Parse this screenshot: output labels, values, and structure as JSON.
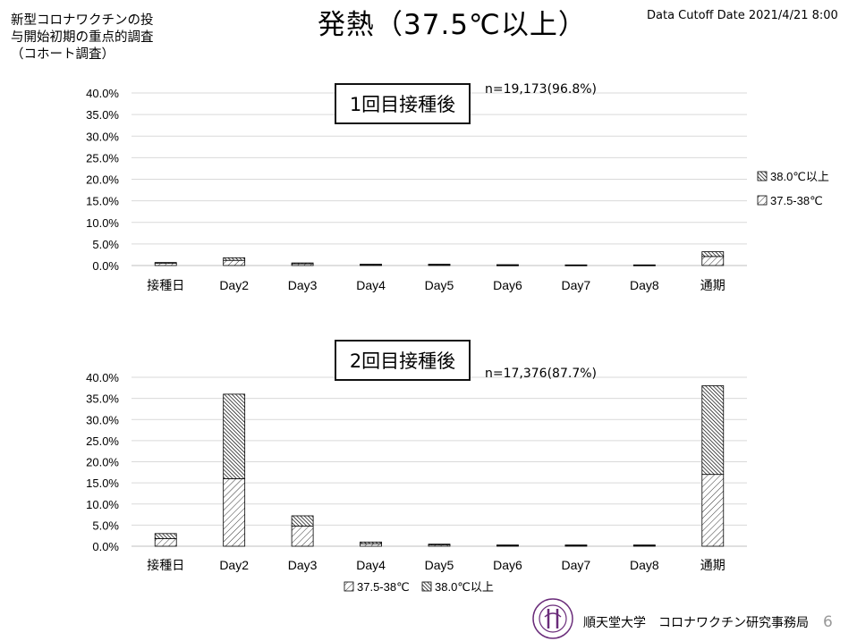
{
  "header": {
    "subtitle": "新型コロナワクチンの投\n与開始初期の重点的調査\n（コホート調査）",
    "title": "発熱（37.5℃以上）",
    "cutoff": "Data Cutoff Date 2021/4/21 8:00"
  },
  "footer": {
    "org": "順天堂大学　コロナワクチン研究事務局",
    "page": "6",
    "seal_text": "JUNTENDO UNIVERSITY"
  },
  "colors": {
    "bar_stroke": "#000000",
    "gridline": "#d9d9d9",
    "hatch": "#000000"
  },
  "chart_data": [
    {
      "type": "bar",
      "stacked": true,
      "title": "1回目接種後",
      "annotation": "n=19,173(96.8%)",
      "categories": [
        "接種日",
        "Day2",
        "Day3",
        "Day4",
        "Day5",
        "Day6",
        "Day7",
        "Day8",
        "通期"
      ],
      "ylim": [
        0,
        40
      ],
      "yticks": [
        "0.0%",
        "5.0%",
        "10.0%",
        "15.0%",
        "20.0%",
        "25.0%",
        "30.0%",
        "35.0%",
        "40.0%"
      ],
      "grid": true,
      "legend_position": "right",
      "series": [
        {
          "name": "37.5-38℃",
          "pattern": "thin-hatch",
          "values": [
            0.5,
            1.2,
            0.4,
            0.2,
            0.2,
            0.1,
            0.1,
            0.1,
            2.1
          ]
        },
        {
          "name": "38.0℃以上",
          "pattern": "dense-hatch",
          "values": [
            0.2,
            0.6,
            0.2,
            0.1,
            0.1,
            0.1,
            0.05,
            0.05,
            1.1
          ]
        }
      ]
    },
    {
      "type": "bar",
      "stacked": true,
      "title": "2回目接種後",
      "annotation": "n=17,376(87.7%)",
      "categories": [
        "接種日",
        "Day2",
        "Day3",
        "Day4",
        "Day5",
        "Day6",
        "Day7",
        "Day8",
        "通期"
      ],
      "ylim": [
        0,
        40
      ],
      "yticks": [
        "0.0%",
        "5.0%",
        "10.0%",
        "15.0%",
        "20.0%",
        "25.0%",
        "30.0%",
        "35.0%",
        "40.0%"
      ],
      "grid": true,
      "legend_position": "bottom",
      "series": [
        {
          "name": "37.5-38℃",
          "pattern": "thin-hatch",
          "values": [
            1.8,
            16.0,
            4.8,
            0.6,
            0.3,
            0.2,
            0.2,
            0.2,
            17.0
          ]
        },
        {
          "name": "38.0℃以上",
          "pattern": "dense-hatch",
          "values": [
            1.2,
            20.0,
            2.4,
            0.4,
            0.2,
            0.1,
            0.1,
            0.1,
            21.0
          ]
        }
      ]
    }
  ]
}
